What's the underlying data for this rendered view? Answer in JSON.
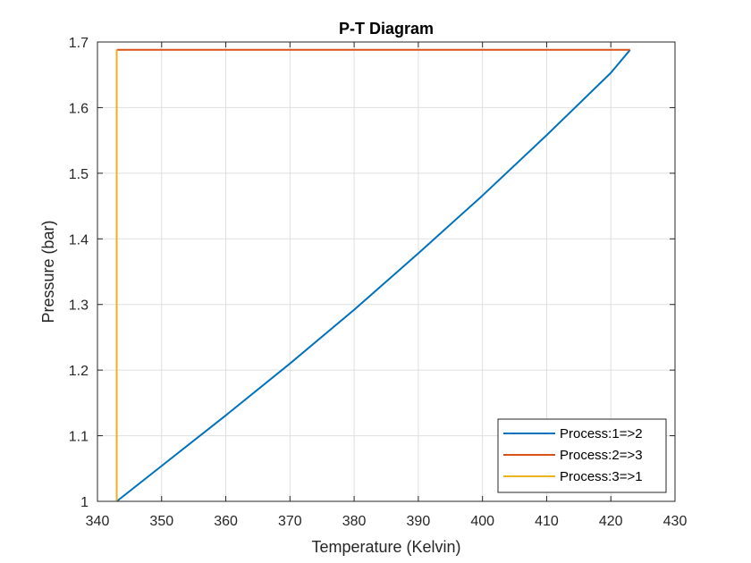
{
  "chart_data": {
    "type": "line",
    "title": "P-T Diagram",
    "xlabel": "Temperature (Kelvin)",
    "ylabel": "Pressure (bar)",
    "xlim": [
      340,
      430
    ],
    "ylim": [
      1,
      1.7
    ],
    "xticks": [
      340,
      350,
      360,
      370,
      380,
      390,
      400,
      410,
      420,
      430
    ],
    "yticks": [
      1,
      1.1,
      1.2,
      1.3,
      1.4,
      1.5,
      1.6,
      1.7
    ],
    "xtick_labels": [
      "340",
      "350",
      "360",
      "370",
      "380",
      "390",
      "400",
      "410",
      "420",
      "430"
    ],
    "ytick_labels": [
      "1",
      "1.1",
      "1.2",
      "1.3",
      "1.4",
      "1.5",
      "1.6",
      "1.7"
    ],
    "grid": true,
    "legend_position": "bottom-right",
    "series": [
      {
        "name": "Process:1=>2",
        "color": "#0072BD",
        "x": [
          343,
          350,
          360,
          370,
          380,
          390,
          400,
          410,
          420,
          423
        ],
        "y": [
          1.0,
          1.054,
          1.131,
          1.21,
          1.292,
          1.378,
          1.466,
          1.558,
          1.653,
          1.688
        ]
      },
      {
        "name": "Process:2=>3",
        "color": "#D95319",
        "x": [
          423,
          343
        ],
        "y": [
          1.688,
          1.688
        ]
      },
      {
        "name": "Process:3=>1",
        "color": "#EDB120",
        "x": [
          343,
          343
        ],
        "y": [
          1.688,
          1.0
        ]
      }
    ]
  }
}
